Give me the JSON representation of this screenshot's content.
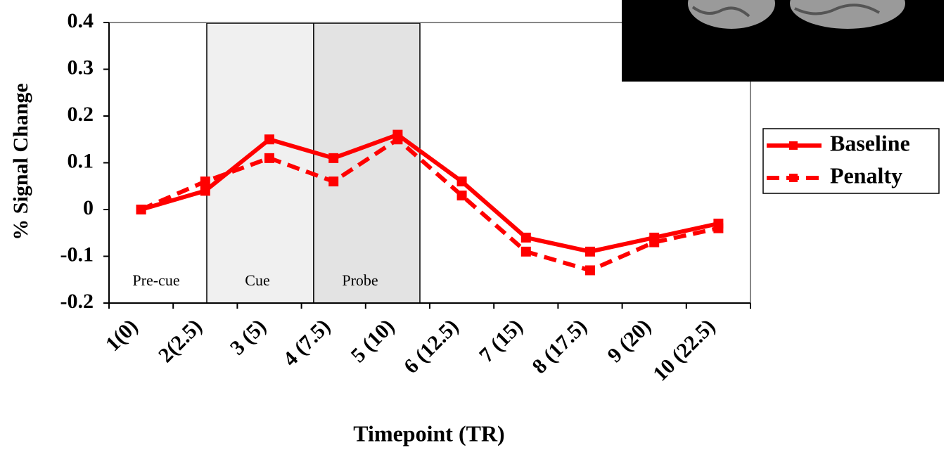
{
  "chart_data": {
    "type": "line",
    "xlabel": "Timepoint (TR)",
    "ylabel": "% Signal Change",
    "categories": [
      "1(0)",
      "2(2.5)",
      "3 (5)",
      "4 (7.5)",
      "5 (10)",
      "6 (12.5)",
      "7 (15)",
      "8 (17.5)",
      "9 (20)",
      "10 (22.5)"
    ],
    "series": [
      {
        "name": "Baseline",
        "color": "#ff0000",
        "dashed": false,
        "values": [
          0,
          0.04,
          0.15,
          0.11,
          0.16,
          0.06,
          -0.06,
          -0.09,
          -0.06,
          -0.03
        ]
      },
      {
        "name": "Penalty",
        "color": "#ff0000",
        "dashed": true,
        "values": [
          0,
          0.06,
          0.11,
          0.06,
          0.15,
          0.03,
          -0.09,
          -0.13,
          -0.07,
          -0.04
        ]
      }
    ],
    "annotations": [
      "Pre-cue",
      "Cue",
      "Probe"
    ],
    "ylim": [
      -0.2,
      0.4
    ],
    "yticks": [
      0.4,
      0.3,
      0.2,
      0.1,
      0,
      -0.1,
      -0.2
    ],
    "grid": false,
    "legend": "right"
  }
}
